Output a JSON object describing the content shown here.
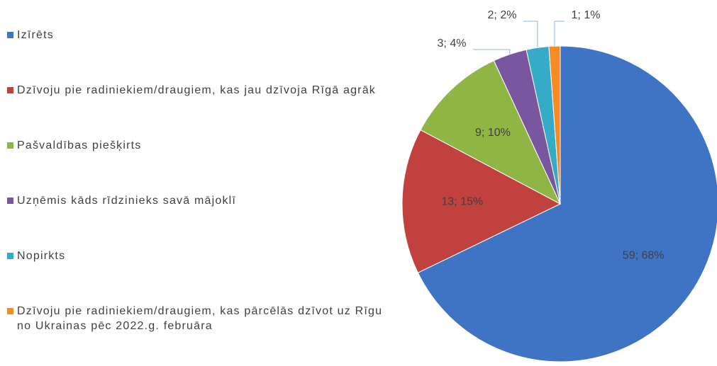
{
  "chart_data": {
    "type": "pie",
    "categories": [
      "Izīrēts",
      "Dzīvoju pie radiniekiem/draugiem, kas jau dzīvoja Rīgā agrāk",
      "Pašvaldības piešķirts",
      "Uzņēmis kāds rīdzinieks savā mājoklī",
      "Nopirkts",
      "Dzīvoju pie radiniekiem/draugiem, kas pārcēlās dzīvot uz Rīgu no Ukrainas pēc 2022.g. februāra"
    ],
    "values": [
      59,
      13,
      9,
      3,
      2,
      1
    ],
    "value_labels": [
      "59; 68%",
      "13; 15%",
      "9; 10%",
      "3; 4%",
      "2; 2%",
      "1; 1%"
    ],
    "colors": [
      "#3f74c4",
      "#c0413e",
      "#8fb545",
      "#7a55a0",
      "#36abc8",
      "#f68b24"
    ],
    "legend": "left"
  }
}
